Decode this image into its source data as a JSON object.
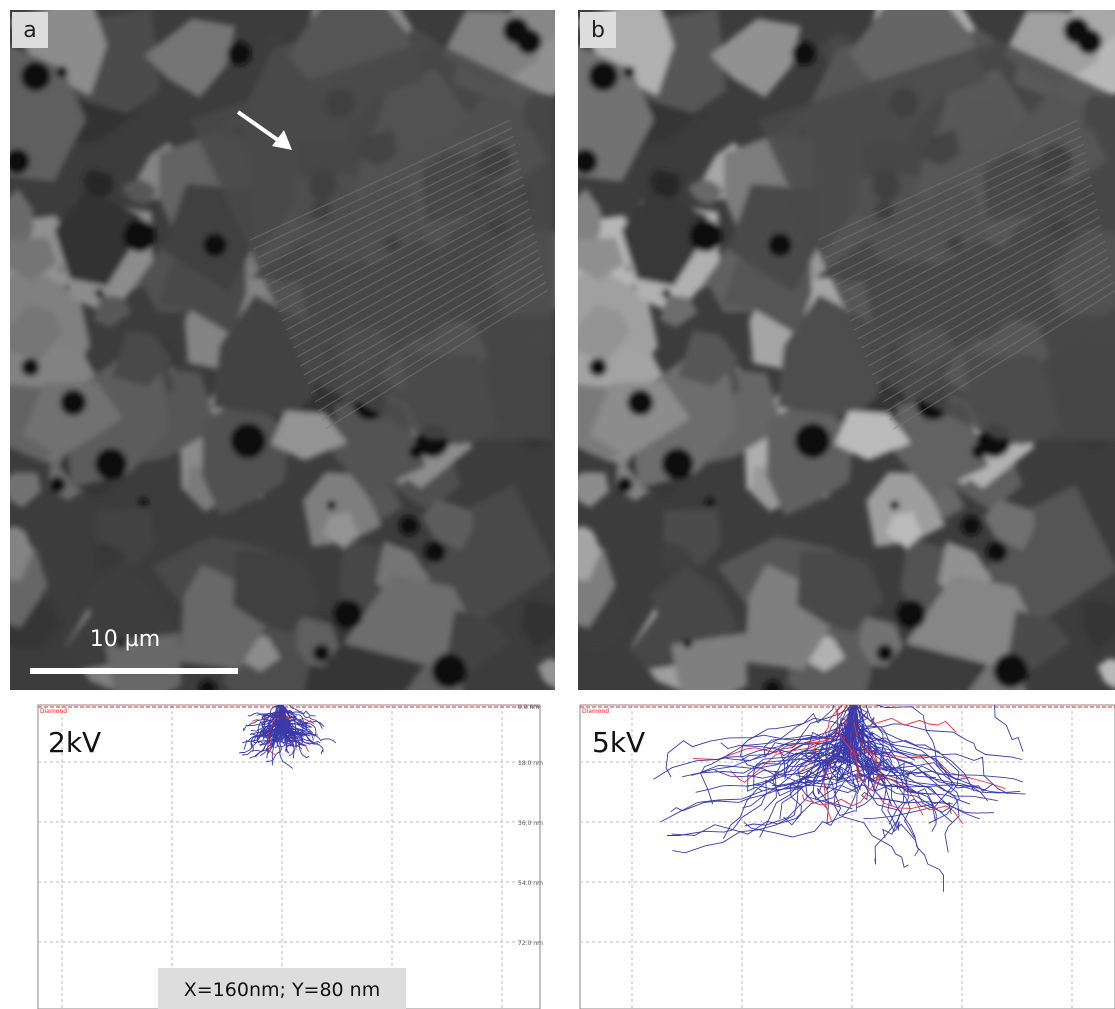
{
  "panels": [
    {
      "label": "a",
      "scale_bar": "10 µm"
    },
    {
      "label": "b"
    }
  ],
  "simulations": [
    {
      "voltage": "2kV",
      "material": "Diamond",
      "depth_labels": [
        "0.0 nm",
        "18.0 nm",
        "36.0 nm",
        "54.0 nm",
        "72.0 nm"
      ],
      "footer": "X=160nm; Y=80 nm"
    },
    {
      "voltage": "5kV",
      "material": "Diamond"
    }
  ]
}
